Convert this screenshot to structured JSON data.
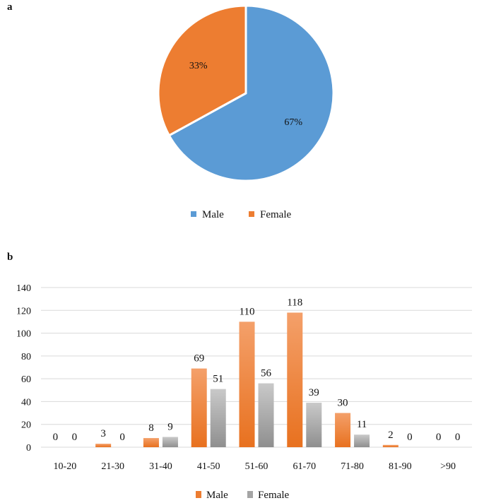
{
  "panels": {
    "a": "a",
    "b": "b"
  },
  "colors": {
    "male": "#5b9bd5",
    "female": "#ed7d31",
    "male_bar": "#ed7d31",
    "female_bar": "#a5a5a5",
    "grid": "#d9d9d9"
  },
  "chart_data": [
    {
      "type": "pie",
      "labels": [
        "Male",
        "Female"
      ],
      "values": [
        67,
        33
      ],
      "value_labels": [
        "67%",
        "33%"
      ],
      "legend": [
        "Male",
        "Female"
      ],
      "legend_position": "bottom"
    },
    {
      "type": "bar",
      "categories": [
        "10-20",
        "21-30",
        "31-40",
        "41-50",
        "51-60",
        "61-70",
        "71-80",
        "81-90",
        ">90"
      ],
      "series": [
        {
          "name": "Male",
          "values": [
            0,
            3,
            8,
            69,
            110,
            118,
            30,
            2,
            0
          ]
        },
        {
          "name": "Female",
          "values": [
            0,
            0,
            9,
            51,
            56,
            39,
            11,
            0,
            0
          ]
        }
      ],
      "ylim": [
        0,
        140
      ],
      "yticks": [
        0,
        20,
        40,
        60,
        80,
        100,
        120,
        140
      ],
      "grid": true,
      "legend_position": "bottom"
    }
  ]
}
